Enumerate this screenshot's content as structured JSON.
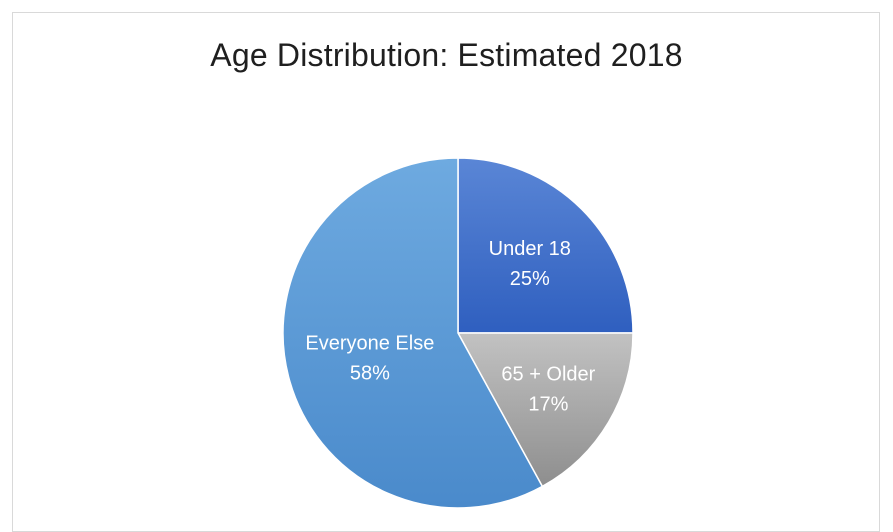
{
  "chart_data": {
    "type": "pie",
    "title": "Age Distribution: Estimated 2018",
    "slices": [
      {
        "label": "Under 18",
        "value": 25,
        "value_label": "25%",
        "color": "#3f6fc9",
        "gradient": [
          "#5a86d6",
          "#2f5fbf"
        ]
      },
      {
        "label": "65 + Older",
        "value": 17,
        "value_label": "17%",
        "color": "#a5a5a5",
        "gradient": [
          "#c2c2c2",
          "#8e8e8e"
        ]
      },
      {
        "label": "Everyone Else",
        "value": 58,
        "value_label": "58%",
        "color": "#5b9bd5",
        "gradient": [
          "#6eaae0",
          "#4a8acb"
        ]
      }
    ],
    "start_angle": "12 o'clock",
    "direction": "clockwise",
    "legend": "none"
  }
}
